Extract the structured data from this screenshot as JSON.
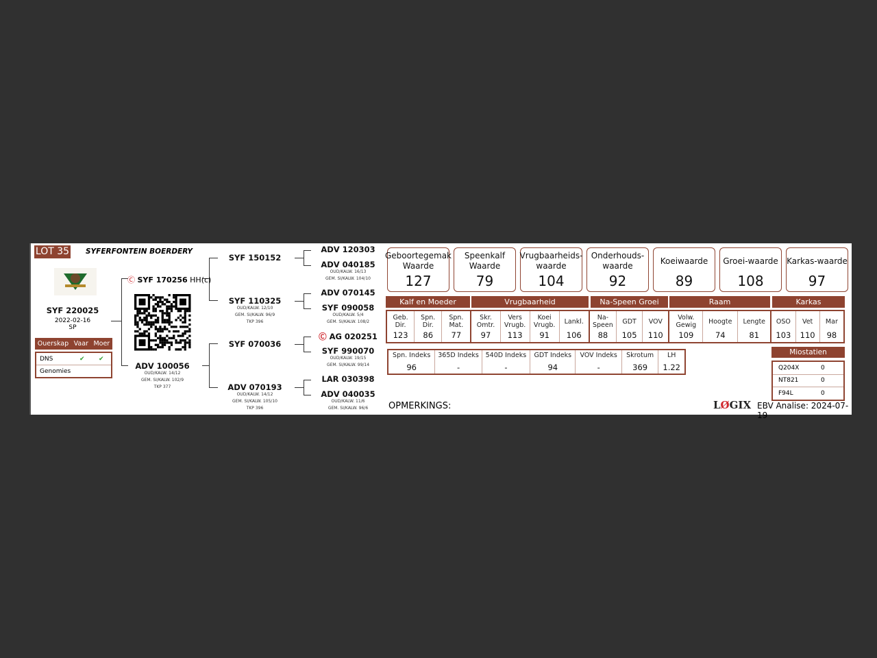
{
  "lot": "LOT 35",
  "farm": "SYFERFONTEIN BOERDERY",
  "animal": {
    "id": "SYF 220025",
    "date": "2022-02-16",
    "type": "SP"
  },
  "parentage": {
    "headers": [
      "Ouerskap",
      "Vaar",
      "Moer"
    ],
    "rows": [
      {
        "label": "DNS",
        "vaar": "✔",
        "moer": "✔"
      },
      {
        "label": "Genomies",
        "vaar": "",
        "moer": ""
      }
    ]
  },
  "sire": {
    "id": "SYF 170256",
    "suffix": "HH(c)"
  },
  "dam": {
    "id": "ADV 100056",
    "l1": "OUD/KALW. 14/12",
    "l2": "GEM. SI/KALW. 102/9",
    "l3": "TKP 377"
  },
  "gp": [
    {
      "id": "SYF 150152"
    },
    {
      "id": "SYF 110325",
      "l1": "OUD/KALW. 12/10",
      "l2": "GEM. SI/KALW. 96/9",
      "l3": "TKP 396"
    },
    {
      "id": "SYF 070036"
    },
    {
      "id": "ADV 070193",
      "l1": "OUD/KALW. 14/12",
      "l2": "GEM. SI/KALW. 105/10",
      "l3": "TKP 396"
    }
  ],
  "ggp": [
    {
      "id": "ADV 120303"
    },
    {
      "id": "ADV 040185",
      "l1": "OUD/KALW. 16/13",
      "l2": "GEM. SI/KALW. 104/10"
    },
    {
      "id": "ADV 070145"
    },
    {
      "id": "SYF 090058",
      "l1": "OUD/KALW. 5/4",
      "l2": "GEM. SI/KALW. 108/2"
    },
    {
      "id": "AG 020251"
    },
    {
      "id": "SYF 990070",
      "l1": "OUD/KALW. 19/15",
      "l2": "GEM. SI/KALW. 99/14"
    },
    {
      "id": "LAR 030398"
    },
    {
      "id": "ADV 040035",
      "l1": "OUD/KALW. 11/6",
      "l2": "GEM. SI/KALW. 96/6"
    }
  ],
  "values": [
    {
      "label": "Geboortegemak Waarde",
      "value": "127"
    },
    {
      "label": "Speenkalf Waarde",
      "value": "79"
    },
    {
      "label": "Vrugbaarheids-waarde",
      "value": "104"
    },
    {
      "label": "Onderhouds-waarde",
      "value": "92"
    },
    {
      "label": "Koeiwaarde",
      "value": "89"
    },
    {
      "label": "Groei-waarde",
      "value": "108"
    },
    {
      "label": "Karkas-waarde",
      "value": "97"
    }
  ],
  "groups": [
    "Kalf en Moeder",
    "Vrugbaarheid",
    "Na-Speen Groei",
    "Raam",
    "Karkas"
  ],
  "ebv": [
    [
      {
        "l": "Geb. Dir.",
        "v": "123"
      },
      {
        "l": "Spn. Dir.",
        "v": "86"
      },
      {
        "l": "Spn. Mat.",
        "v": "77"
      }
    ],
    [
      {
        "l": "Skr. Omtr.",
        "v": "97"
      },
      {
        "l": "Vers Vrugb.",
        "v": "113"
      },
      {
        "l": "Koei Vrugb.",
        "v": "91"
      },
      {
        "l": "Lankl.",
        "v": "106"
      }
    ],
    [
      {
        "l": "Na-Speen",
        "v": "88"
      },
      {
        "l": "GDT",
        "v": "105"
      },
      {
        "l": "VOV",
        "v": "110"
      }
    ],
    [
      {
        "l": "Volw. Gewig",
        "v": "109"
      },
      {
        "l": "Hoogte",
        "v": "74"
      },
      {
        "l": "Lengte",
        "v": "81"
      }
    ],
    [
      {
        "l": "OSO",
        "v": "103"
      },
      {
        "l": "Vet",
        "v": "110"
      },
      {
        "l": "Mar",
        "v": "98"
      }
    ]
  ],
  "indexes": [
    {
      "l": "Spn. Indeks",
      "v": "96"
    },
    {
      "l": "365D Indeks",
      "v": "-"
    },
    {
      "l": "540D Indeks",
      "v": "-"
    },
    {
      "l": "GDT Indeks",
      "v": "94"
    },
    {
      "l": "VOV Indeks",
      "v": "-"
    },
    {
      "l": "Skrotum",
      "v": "369"
    },
    {
      "l": "LH",
      "v": "1.22"
    }
  ],
  "miostatien": {
    "title": "Miostatien",
    "rows": [
      {
        "k": "Q204X",
        "v": "0"
      },
      {
        "k": "NT821",
        "v": "0"
      },
      {
        "k": "F94L",
        "v": "0"
      }
    ]
  },
  "remarks": "OPMERKINGS:",
  "logo": "LOGIX",
  "analysis": "EBV Analise: 2024-07-19",
  "colors": {
    "brand": "#8e4330",
    "check": "#2e9e2e",
    "ai_icon": "#d0282e"
  }
}
